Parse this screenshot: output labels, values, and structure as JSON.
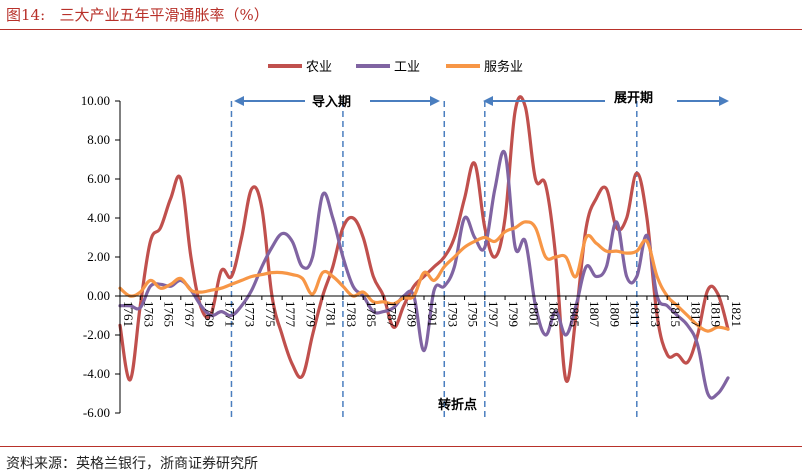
{
  "header": {
    "title": "图14:   三大产业五年平滑通胀率（%）"
  },
  "footer": {
    "source": "资料来源：英格兰银行，浙商证券研究所"
  },
  "colors": {
    "agriculture": "#c0504d",
    "industry": "#8064a2",
    "services": "#f79646",
    "accent": "#b8312a",
    "annotation": "#4a7ebf"
  },
  "chart_data": {
    "type": "line",
    "title": "",
    "xlabel": "",
    "ylabel": "",
    "ylim": [
      -6,
      10
    ],
    "yticks": [
      "10.00",
      "8.00",
      "6.00",
      "4.00",
      "2.00",
      "0.00",
      "-2.00",
      "-4.00",
      "-6.00"
    ],
    "xlim": [
      1761,
      1821
    ],
    "xtick_labels": [
      "1761",
      "1763",
      "1765",
      "1767",
      "1769",
      "1771",
      "1773",
      "1775",
      "1777",
      "1779",
      "1781",
      "1783",
      "1785",
      "1787",
      "1789",
      "1791",
      "1793",
      "1795",
      "1797",
      "1799",
      "1801",
      "1803",
      "1805",
      "1807",
      "1809",
      "1811",
      "1813",
      "1815",
      "1817",
      "1819",
      "1821"
    ],
    "legend": {
      "position": "top"
    },
    "series": [
      {
        "name": "农业",
        "color": "#c0504d",
        "x": [
          1761,
          1762,
          1763,
          1764,
          1765,
          1766,
          1767,
          1768,
          1769,
          1770,
          1771,
          1772,
          1773,
          1774,
          1775,
          1776,
          1777,
          1778,
          1779,
          1780,
          1781,
          1782,
          1783,
          1784,
          1785,
          1786,
          1787,
          1788,
          1789,
          1790,
          1791,
          1792,
          1793,
          1794,
          1795,
          1796,
          1797,
          1798,
          1799,
          1800,
          1801,
          1802,
          1803,
          1804,
          1805,
          1806,
          1807,
          1808,
          1809,
          1810,
          1811,
          1812,
          1813,
          1814,
          1815,
          1816,
          1817,
          1818,
          1819,
          1820,
          1821
        ],
        "y": [
          -1.5,
          -4.3,
          -0.5,
          2.8,
          3.5,
          5.0,
          6.0,
          2.0,
          -0.6,
          -0.9,
          1.3,
          1.0,
          3.0,
          5.5,
          4.5,
          0.0,
          -2.0,
          -3.5,
          -4.1,
          -2.0,
          0.0,
          1.5,
          3.5,
          4.0,
          3.0,
          1.0,
          0.0,
          -1.6,
          -0.5,
          0.5,
          1.0,
          1.5,
          2.0,
          3.0,
          5.0,
          6.8,
          3.5,
          2.0,
          4.0,
          9.5,
          9.7,
          6.0,
          5.7,
          2.0,
          -4.3,
          -1.0,
          3.5,
          5.0,
          5.5,
          3.5,
          4.0,
          6.3,
          4.0,
          -1.0,
          -3.0,
          -3.0,
          -3.4,
          -2.0,
          0.3,
          0.1,
          -1.7
        ]
      },
      {
        "name": "工业",
        "color": "#8064a2",
        "x": [
          1761,
          1762,
          1763,
          1764,
          1765,
          1766,
          1767,
          1768,
          1769,
          1770,
          1771,
          1772,
          1773,
          1774,
          1775,
          1776,
          1777,
          1778,
          1779,
          1780,
          1781,
          1782,
          1783,
          1784,
          1785,
          1786,
          1787,
          1788,
          1789,
          1790,
          1791,
          1792,
          1793,
          1794,
          1795,
          1796,
          1797,
          1798,
          1799,
          1800,
          1801,
          1802,
          1803,
          1804,
          1805,
          1806,
          1807,
          1808,
          1809,
          1810,
          1811,
          1812,
          1813,
          1814,
          1815,
          1816,
          1817,
          1818,
          1819,
          1820,
          1821
        ],
        "y": [
          -0.5,
          -0.5,
          -0.6,
          0.5,
          0.6,
          0.5,
          0.8,
          0.3,
          -0.5,
          -1.0,
          -0.8,
          -1.0,
          -0.5,
          0.3,
          1.5,
          2.5,
          3.2,
          2.8,
          1.5,
          2.0,
          5.2,
          4.0,
          2.0,
          0.5,
          0.0,
          -0.8,
          -0.8,
          -0.6,
          0.0,
          0.0,
          -2.8,
          0.3,
          0.5,
          1.5,
          4.0,
          3.0,
          2.5,
          5.5,
          7.3,
          2.5,
          2.8,
          -0.5,
          -2.0,
          -0.8,
          -2.0,
          -0.5,
          1.5,
          1.0,
          1.5,
          3.8,
          1.0,
          1.0,
          3.1,
          0.0,
          -0.5,
          -1.0,
          -1.5,
          -2.5,
          -5.0,
          -5.0,
          -4.2
        ]
      },
      {
        "name": "服务业",
        "color": "#f79646",
        "x": [
          1761,
          1762,
          1763,
          1764,
          1765,
          1766,
          1767,
          1768,
          1769,
          1770,
          1771,
          1772,
          1773,
          1774,
          1775,
          1776,
          1777,
          1778,
          1779,
          1780,
          1781,
          1782,
          1783,
          1784,
          1785,
          1786,
          1787,
          1788,
          1789,
          1790,
          1791,
          1792,
          1793,
          1794,
          1795,
          1796,
          1797,
          1798,
          1799,
          1800,
          1801,
          1802,
          1803,
          1804,
          1805,
          1806,
          1807,
          1808,
          1809,
          1810,
          1811,
          1812,
          1813,
          1814,
          1815,
          1816,
          1817,
          1818,
          1819,
          1820,
          1821
        ],
        "y": [
          0.4,
          0.0,
          0.2,
          0.8,
          0.4,
          0.6,
          0.9,
          0.3,
          0.2,
          0.3,
          0.4,
          0.6,
          0.8,
          1.0,
          1.1,
          1.2,
          1.2,
          1.1,
          0.9,
          0.1,
          1.2,
          1.0,
          0.5,
          0.0,
          0.2,
          -0.3,
          -0.3,
          -0.4,
          -0.1,
          0.0,
          1.2,
          0.8,
          1.5,
          2.0,
          2.5,
          2.8,
          3.0,
          2.8,
          3.3,
          3.5,
          3.8,
          3.5,
          2.0,
          2.0,
          2.0,
          1.0,
          3.0,
          2.7,
          2.3,
          2.3,
          2.2,
          2.3,
          2.8,
          1.0,
          0.0,
          -0.5,
          -1.0,
          -1.5,
          -1.8,
          -1.6,
          -1.7
        ]
      }
    ],
    "annotations": {
      "import_period": "导入期",
      "expansion_period": "展开期",
      "turning_point": "转折点",
      "vlines_x": [
        1772,
        1783,
        1793,
        1797,
        1812
      ]
    }
  }
}
